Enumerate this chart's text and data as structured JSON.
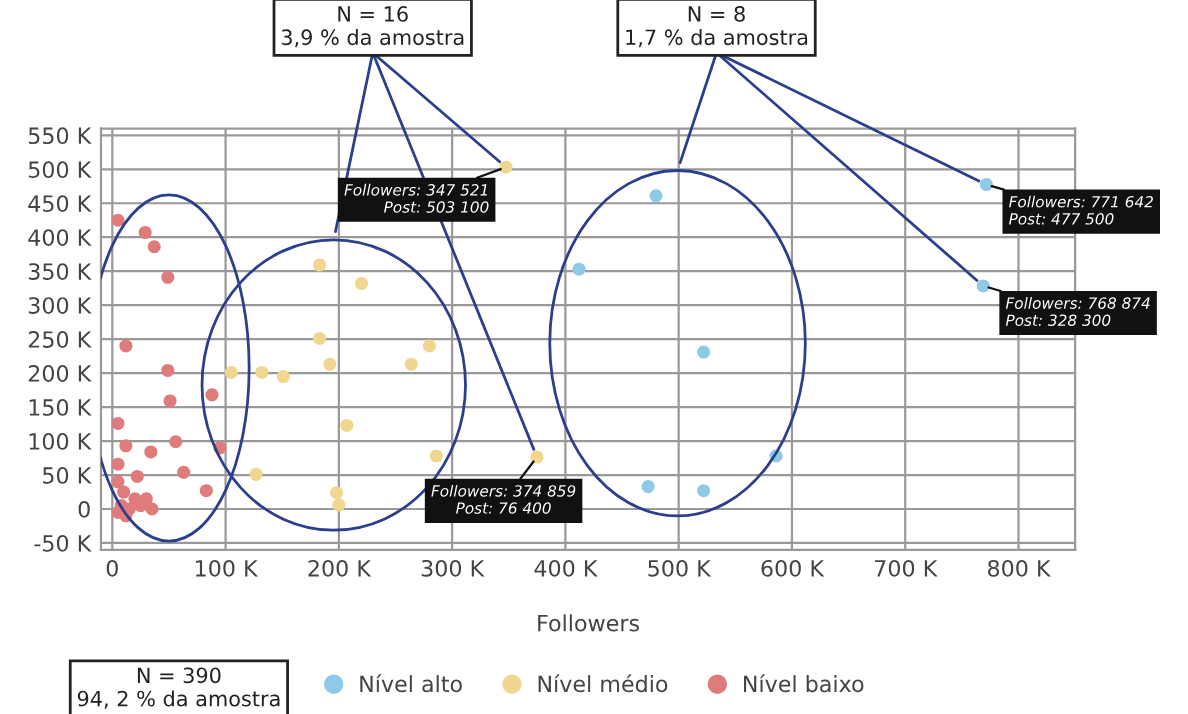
{
  "chart_data": {
    "type": "scatter",
    "xlabel": "Followers",
    "xlim": [
      -10000,
      850000
    ],
    "ylim": [
      -60000,
      560000
    ],
    "xticks": [
      {
        "value": 0,
        "label": "0"
      },
      {
        "value": 100000,
        "label": "100 K"
      },
      {
        "value": 200000,
        "label": "200 K"
      },
      {
        "value": 300000,
        "label": "300 K"
      },
      {
        "value": 400000,
        "label": "400 K"
      },
      {
        "value": 500000,
        "label": "500 K"
      },
      {
        "value": 600000,
        "label": "600 K"
      },
      {
        "value": 700000,
        "label": "700 K"
      },
      {
        "value": 800000,
        "label": "800 K"
      }
    ],
    "yticks": [
      {
        "value": -50000,
        "label": "-50 K"
      },
      {
        "value": 0,
        "label": "0"
      },
      {
        "value": 50000,
        "label": "50 K"
      },
      {
        "value": 100000,
        "label": "100 K"
      },
      {
        "value": 150000,
        "label": "150 K"
      },
      {
        "value": 200000,
        "label": "200 K"
      },
      {
        "value": 250000,
        "label": "250 K"
      },
      {
        "value": 300000,
        "label": "300 K"
      },
      {
        "value": 350000,
        "label": "350 K"
      },
      {
        "value": 400000,
        "label": "400 K"
      },
      {
        "value": 450000,
        "label": "450 K"
      },
      {
        "value": 500000,
        "label": "500 K"
      },
      {
        "value": 550000,
        "label": "550 K"
      }
    ],
    "grid": true,
    "legend": "bottom",
    "marker": "circle",
    "series": [
      {
        "name": "Nível alto",
        "color": "#8ec9e8",
        "x": [
          771642,
          768874,
          480000,
          412000,
          522000,
          586000,
          473000,
          522000
        ],
        "values": [
          477500,
          328300,
          461000,
          353000,
          231000,
          78000,
          33000,
          27000
        ]
      },
      {
        "name": "Nível médio",
        "color": "#f0d68f",
        "x": [
          347521,
          374859,
          183000,
          220000,
          183000,
          280000,
          192000,
          264000,
          132000,
          151000,
          207000,
          127000,
          286000,
          198000,
          200000,
          105000
        ],
        "values": [
          503100,
          76400,
          359000,
          332000,
          251000,
          240000,
          213000,
          213000,
          201000,
          195000,
          123000,
          51000,
          78000,
          24000,
          6000,
          201000
        ]
      },
      {
        "name": "Nível baixo",
        "color": "#e07b7b",
        "x": [
          5000,
          29000,
          37000,
          49000,
          12000,
          49000,
          51000,
          88000,
          5000,
          12000,
          34000,
          56000,
          95000,
          5000,
          22000,
          63000,
          83000,
          5000,
          10000,
          20000,
          30000,
          8000,
          15000,
          25000,
          5000,
          35000,
          12000
        ],
        "values": [
          425000,
          407000,
          386000,
          341000,
          240000,
          204000,
          159000,
          168000,
          126000,
          93000,
          84000,
          99000,
          90000,
          66000,
          48000,
          54000,
          27000,
          40000,
          25000,
          15000,
          15000,
          5000,
          0,
          5000,
          -5000,
          0,
          -10000
        ]
      }
    ],
    "annotations": [
      {
        "text": "N = 16\n3,9 % da amostra",
        "x": 347521,
        "y": 503100
      },
      {
        "text": "N = 8\n1,7 % da amostra",
        "x": 771642,
        "y": 477500
      },
      "N = 390\n94, 2 % da amostra",
      {
        "text": "Followers: 347 521\nPost: 503 100",
        "x": 347521,
        "y": 503100
      },
      {
        "text": "Followers: 374 859\nPost: 76 400",
        "x": 374859,
        "y": 76400
      },
      {
        "text": "Followers: 771 642\nPost: 477 500",
        "x": 771642,
        "y": 477500
      },
      {
        "text": "Followers: 768 874\nPost: 328 300",
        "x": 768874,
        "y": 328300
      }
    ]
  }
}
